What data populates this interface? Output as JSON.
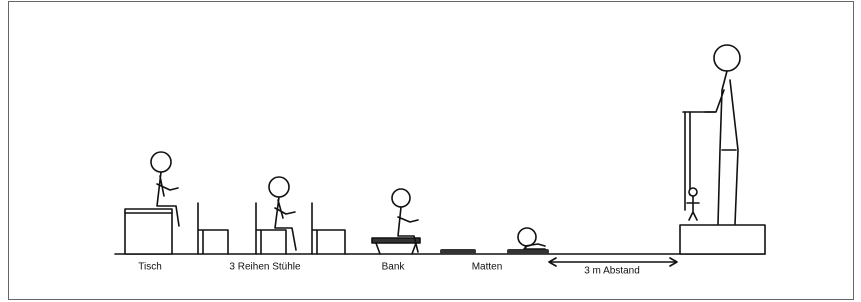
{
  "labels": [
    "Tisch",
    "3 Reihen Stühle",
    "Bank",
    "Matten",
    "3 m Abstand"
  ]
}
